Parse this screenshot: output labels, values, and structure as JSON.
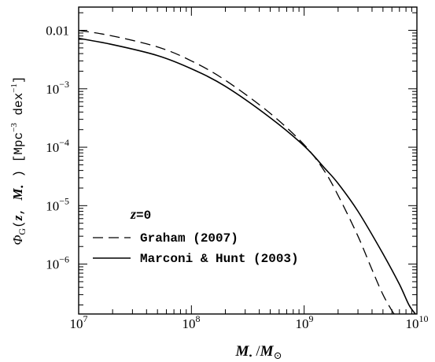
{
  "chart_data": {
    "type": "line",
    "title": "",
    "xlabel": {
      "main": "M",
      "sub": "•",
      "sep": " /",
      "unit": "M",
      "unit_sub": "⊙"
    },
    "ylabel": {
      "phi": "Φ",
      "phi_sub": "G",
      "args_open": "(",
      "z": "z",
      "comma": ", ",
      "m": "M",
      "m_sub": "•",
      "args_close": " )",
      "units": " [Mpc",
      "exp1": "−3",
      "units2": " dex",
      "exp2": "−1",
      "close": "]"
    },
    "xscale": "log",
    "yscale": "log",
    "xlim": [
      10000000.0,
      10000000000.0
    ],
    "ylim": [
      1.4e-07,
      0.025
    ],
    "x_ticks": [
      {
        "base": "10",
        "exp": "7"
      },
      {
        "base": "10",
        "exp": "8"
      },
      {
        "base": "10",
        "exp": "9"
      },
      {
        "base": "10",
        "exp": "10"
      }
    ],
    "y_ticks": [
      {
        "value": 0.01,
        "base": "0.01",
        "exp": ""
      },
      {
        "value": 0.001,
        "base": "10",
        "exp": "−3"
      },
      {
        "value": 0.0001,
        "base": "10",
        "exp": "−4"
      },
      {
        "value": 1e-05,
        "base": "10",
        "exp": "−5"
      },
      {
        "value": 1e-06,
        "base": "10",
        "exp": "−6"
      }
    ],
    "legend_placement": "lower-left",
    "annotation": {
      "var": "z",
      "rest": "=0"
    },
    "series": [
      {
        "name": "Graham (2007)",
        "style": "dashed",
        "color": "#000000",
        "x": [
          10000000.0,
          20000000.0,
          50000000.0,
          100000000.0,
          200000000.0,
          500000000.0,
          1000000000.0,
          1500000000.0,
          2000000000.0,
          3000000000.0,
          4000000000.0,
          5000000000.0,
          6000000000.0,
          6300000000.0
        ],
        "y": [
          0.01,
          0.008,
          0.0052,
          0.003,
          0.0014,
          0.00038,
          0.00011,
          4e-05,
          1.5e-05,
          3e-06,
          8e-07,
          3e-07,
          1.6e-07,
          1.4e-07
        ]
      },
      {
        "name": "Marconi & Hunt (2003)",
        "style": "solid",
        "color": "#000000",
        "x": [
          10000000.0,
          20000000.0,
          50000000.0,
          100000000.0,
          200000000.0,
          500000000.0,
          1000000000.0,
          1500000000.0,
          2000000000.0,
          3000000000.0,
          5000000000.0,
          7000000000.0,
          8500000000.0,
          9700000000.0
        ],
        "y": [
          0.0073,
          0.0057,
          0.0037,
          0.0022,
          0.0011,
          0.00032,
          0.000105,
          4.5e-05,
          2.4e-05,
          8e-06,
          1.5e-06,
          4.5e-07,
          2e-07,
          1.4e-07
        ]
      }
    ]
  }
}
